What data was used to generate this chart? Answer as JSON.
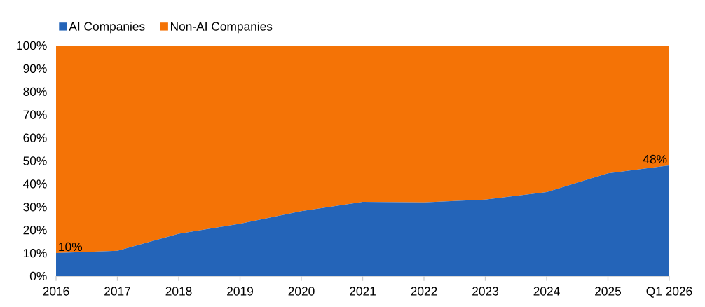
{
  "chart_data": {
    "type": "area",
    "stacked": true,
    "legend": "top left",
    "categories": [
      "2016",
      "2017",
      "2018",
      "2019",
      "2020",
      "2021",
      "2022",
      "2023",
      "2024",
      "2025",
      "Q1 2026"
    ],
    "series": [
      {
        "name": "AI Companies",
        "color": "#2464b8",
        "values": [
          10,
          11,
          18.4,
          22.7,
          28.2,
          32.2,
          32,
          33.2,
          36.5,
          44.6,
          48
        ],
        "value_labels": [
          "10%",
          null,
          null,
          null,
          null,
          null,
          null,
          null,
          null,
          null,
          "48%"
        ]
      },
      {
        "name": "Non-AI Companies",
        "color": "#f47306",
        "values": [
          90,
          89,
          81.6,
          77.3,
          71.8,
          67.8,
          68,
          66.8,
          63.5,
          55.4,
          52
        ]
      }
    ],
    "ylim": [
      0,
      100
    ],
    "yticks": [
      {
        "value": 0,
        "label": "0%"
      },
      {
        "value": 10,
        "label": "10%"
      },
      {
        "value": 20,
        "label": "20%"
      },
      {
        "value": 30,
        "label": "30%"
      },
      {
        "value": 40,
        "label": "40%"
      },
      {
        "value": 50,
        "label": "50%"
      },
      {
        "value": 60,
        "label": "60%"
      },
      {
        "value": 70,
        "label": "70%"
      },
      {
        "value": 80,
        "label": "80%"
      },
      {
        "value": 90,
        "label": "90%"
      },
      {
        "value": 100,
        "label": "100%"
      }
    ]
  }
}
